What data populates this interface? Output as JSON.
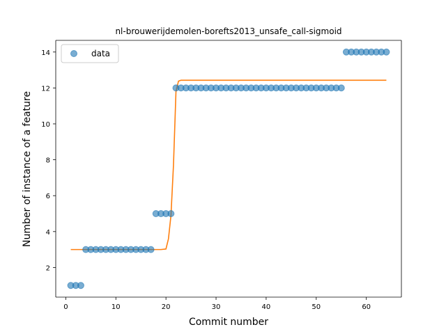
{
  "chart_data": {
    "type": "scatter",
    "title": "nl-brouwerijdemolen-borefts2013_unsafe_call-sigmoid",
    "xlabel": "Commit number",
    "ylabel": "Number of instance of a feature",
    "xlim": [
      -2,
      67
    ],
    "ylim": [
      0.35,
      14.65
    ],
    "xticks": [
      0,
      10,
      20,
      30,
      40,
      50,
      60
    ],
    "yticks": [
      2,
      4,
      6,
      8,
      10,
      12,
      14
    ],
    "legend": {
      "placement": "top-left",
      "entries": [
        "data"
      ]
    },
    "colors": {
      "scatter": "#1f77b4",
      "fit": "#ff7f0e"
    },
    "series": [
      {
        "name": "data",
        "kind": "scatter",
        "x": [
          1,
          2,
          3,
          4,
          5,
          6,
          7,
          8,
          9,
          10,
          11,
          12,
          13,
          14,
          15,
          16,
          17,
          18,
          19,
          20,
          21,
          22,
          23,
          24,
          25,
          26,
          27,
          28,
          29,
          30,
          31,
          32,
          33,
          34,
          35,
          36,
          37,
          38,
          39,
          40,
          41,
          42,
          43,
          44,
          45,
          46,
          47,
          48,
          49,
          50,
          51,
          52,
          53,
          54,
          55,
          56,
          57,
          58,
          59,
          60,
          61,
          62,
          63,
          64
        ],
        "y": [
          1,
          1,
          1,
          3,
          3,
          3,
          3,
          3,
          3,
          3,
          3,
          3,
          3,
          3,
          3,
          3,
          3,
          5,
          5,
          5,
          5,
          12,
          12,
          12,
          12,
          12,
          12,
          12,
          12,
          12,
          12,
          12,
          12,
          12,
          12,
          12,
          12,
          12,
          12,
          12,
          12,
          12,
          12,
          12,
          12,
          12,
          12,
          12,
          12,
          12,
          12,
          12,
          12,
          12,
          12,
          14,
          14,
          14,
          14,
          14,
          14,
          14,
          14,
          14
        ]
      },
      {
        "kind": "line",
        "x": [
          1,
          19,
          20,
          20.5,
          21,
          21.5,
          22,
          22.5,
          23,
          64
        ],
        "y": [
          3,
          3,
          3.03,
          3.6,
          4.9,
          7.7,
          11.8,
          12.38,
          12.43,
          12.43
        ]
      }
    ]
  }
}
